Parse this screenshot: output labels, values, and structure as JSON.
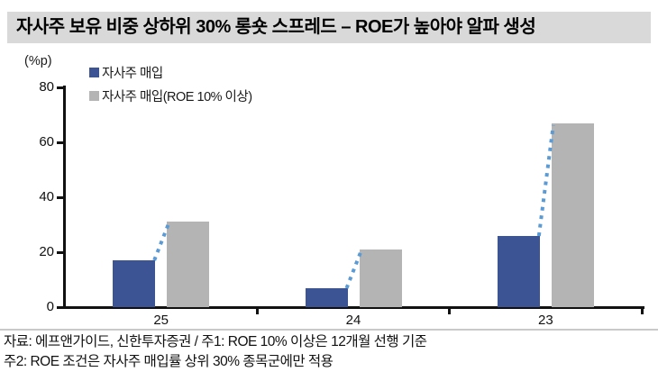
{
  "title": "자사주 보유 비중 상하위 30% 롱숏 스프레드 – ROE가 높아야 알파 생성",
  "unit_label": "(%p)",
  "footer": {
    "line1": "자료: 에프앤가이드, 신한투자증권 / 주1: ROE 10% 이상은 12개월 선행 기준",
    "line2": "주2: ROE 조건은 자사주 매입률 상위 30% 종목군에만 적용"
  },
  "colors": {
    "title_bar_bg": "#d9d9d9",
    "axis": "#111111",
    "connector": "#5b9bd5",
    "separator": "#c9c9c9"
  },
  "chart_data": {
    "type": "bar",
    "title": "자사주 보유 비중 상하위 30% 롱숏 스프레드 – ROE가 높아야 알파 생성",
    "categories": [
      "25",
      "24",
      "23"
    ],
    "series": [
      {
        "name": "자사주 매입",
        "color": "#3c5493",
        "values": [
          17,
          7,
          26
        ]
      },
      {
        "name": "자사주 매입(ROE 10% 이상)",
        "color": "#b4b4b4",
        "values": [
          31,
          21,
          67
        ]
      }
    ],
    "ylabel": "(%p)",
    "xlabel": "",
    "ylim": [
      0,
      80
    ],
    "yticks": [
      0,
      20,
      40,
      60,
      80
    ],
    "grid": false,
    "legend_position": "top-left",
    "annotations": "dotted connector from each navy bar top to the paired gray bar top"
  }
}
